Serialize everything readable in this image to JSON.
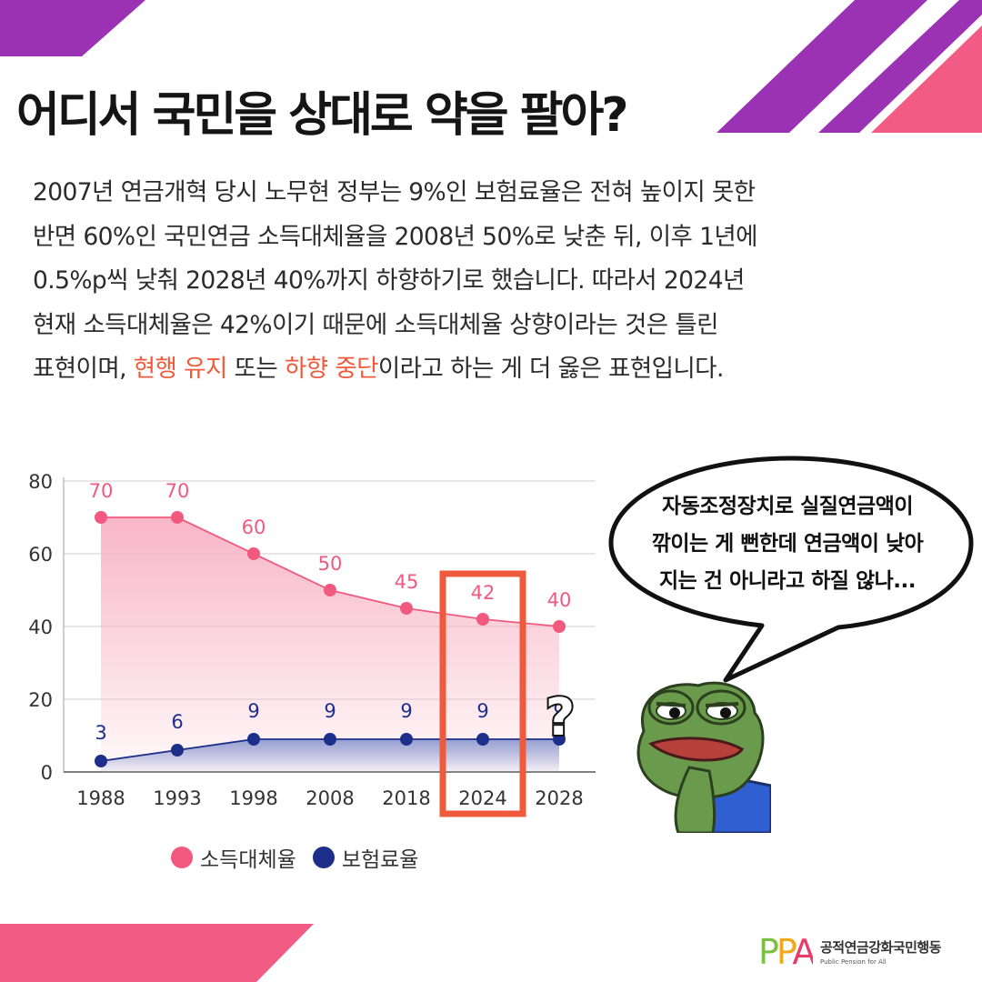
{
  "headline": "어디서 국민을 상대로 약을 팔아?",
  "body": {
    "line1": "2007년 연금개혁 당시 노무현 정부는 9%인 보험료율은 전혀 높이지 못한",
    "line2": "반면 60%인 국민연금 소득대체율을 2008년 50%로 낮춘 뒤, 이후 1년에",
    "line3": "0.5%p씩 낮춰 2028년 40%까지 하향하기로 했습니다. 따라서 2024년",
    "line4": "현재 소득대체율은 42%이기 때문에 소득대체율 상향이라는 것은 틀린",
    "line5_pre": "표현이며, ",
    "line5_hl1": "현행 유지",
    "line5_mid": " 또는 ",
    "line5_hl2": "하향 중단",
    "line5_post": "이라고 하는 게 더 옳은 표현입니다."
  },
  "chart_data": {
    "type": "line",
    "categories": [
      "1988",
      "1993",
      "1998",
      "2008",
      "2018",
      "2024",
      "2028"
    ],
    "series": [
      {
        "name": "소득대체율",
        "values": [
          70,
          70,
          60,
          50,
          45,
          42,
          40
        ],
        "color": "#f2597f",
        "fill": "#f8b2c4"
      },
      {
        "name": "보험료율",
        "values": [
          3,
          6,
          9,
          9,
          9,
          9,
          9
        ],
        "color": "#1d2f8a",
        "fill": "#8f9ad0"
      }
    ],
    "ylim": [
      0,
      80
    ],
    "yticks": [
      "0",
      "20",
      "40",
      "60",
      "80"
    ],
    "grid": true,
    "highlight_category": "2024",
    "highlight_color": "#f05a3c",
    "legend_position": "bottom"
  },
  "bubble": {
    "line1": "자동조정장치로 실질연금액이",
    "line2": "깎이는 게 뻔한데 연금액이 낮아",
    "line3": "지는 건 아니라고 하질 않나..."
  },
  "question_mark": "?",
  "colors": {
    "purple": "#9b32b4",
    "pink": "#f25c84",
    "accent": "#f05a3c"
  },
  "logo": {
    "mark": "PPA",
    "name": "공적연금강화국민행동",
    "sub": "Public Pension for All"
  }
}
